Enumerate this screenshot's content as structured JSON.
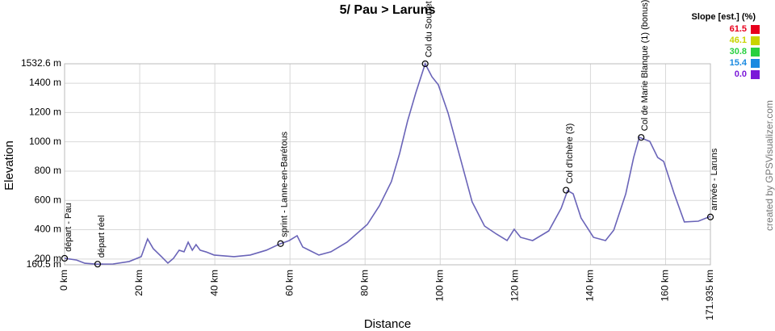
{
  "chart_data": {
    "type": "line",
    "title": "5/ Pau > Laruns",
    "x_label": "Distance",
    "y_label": "Elevation",
    "credit": "created by GPSVisualizer.com",
    "xlim": [
      0,
      171.935
    ],
    "ylim": [
      160.5,
      1532.6
    ],
    "xticks": [
      {
        "value": 0,
        "label": "0 km"
      },
      {
        "value": 20,
        "label": "20 km"
      },
      {
        "value": 40,
        "label": "40 km"
      },
      {
        "value": 60,
        "label": "60 km"
      },
      {
        "value": 80,
        "label": "80 km"
      },
      {
        "value": 100,
        "label": "100 km"
      },
      {
        "value": 120,
        "label": "120 km"
      },
      {
        "value": 140,
        "label": "140 km"
      },
      {
        "value": 160,
        "label": "160 km"
      },
      {
        "value": 171.935,
        "label": "171.935 km"
      }
    ],
    "yticks": [
      {
        "value": 160.5,
        "label": "160.5 m"
      },
      {
        "value": 200,
        "label": "200 m"
      },
      {
        "value": 400,
        "label": "400 m"
      },
      {
        "value": 600,
        "label": "600 m"
      },
      {
        "value": 800,
        "label": "800 m"
      },
      {
        "value": 1000,
        "label": "1000 m"
      },
      {
        "value": 1200,
        "label": "1200 m"
      },
      {
        "value": 1400,
        "label": "1400 m"
      },
      {
        "value": 1532.6,
        "label": "1532.6 m"
      }
    ],
    "grid": true,
    "series": [
      {
        "name": "Elevation",
        "color": "#6a64b8",
        "x": [
          0,
          3.2,
          5.4,
          8.6,
          12.9,
          17.2,
          20.4,
          22.1,
          23.6,
          25.8,
          27.5,
          29.0,
          30.5,
          31.8,
          32.9,
          34.0,
          35.0,
          36.1,
          37.6,
          39.8,
          45.1,
          49.4,
          53.7,
          57.4,
          59.8,
          61.9,
          63.4,
          67.7,
          70.9,
          75.2,
          80.6,
          83.8,
          87.0,
          89.2,
          91.3,
          93.5,
          96.0,
          97.8,
          99.5,
          102.1,
          105.3,
          108.5,
          111.8,
          115.0,
          117.8,
          119.7,
          121.4,
          124.6,
          128.9,
          132.2,
          133.9,
          135.4,
          137.5,
          140.8,
          144.0,
          146.2,
          149.4,
          151.5,
          153.0,
          155.8,
          157.9,
          159.5,
          162.3,
          165.0,
          168.7,
          171.935
        ],
        "values": [
          205,
          193,
          171,
          165,
          166,
          183,
          216,
          337,
          271,
          216,
          172,
          205,
          260,
          249,
          315,
          260,
          298,
          260,
          249,
          227,
          216,
          227,
          260,
          304,
          326,
          359,
          282,
          227,
          249,
          315,
          436,
          563,
          728,
          921,
          1141,
          1334,
          1532.6,
          1444,
          1389,
          1196,
          893,
          590,
          425,
          370,
          326,
          403,
          348,
          326,
          392,
          546,
          667,
          645,
          480,
          348,
          326,
          397,
          645,
          893,
          1031,
          1003,
          893,
          866,
          645,
          453,
          458,
          491
        ]
      }
    ],
    "waypoints": {
      "labels": [
        "départ - Pau",
        "départ réel",
        "sprint - Lanne-en-Barétous",
        "Col du Soudet",
        "Col d'Ichère (3)",
        "Col de Marie Blanque (1) (bonus)",
        "arrivée - Laruns"
      ],
      "x": [
        0,
        8.8,
        57.5,
        96.0,
        133.5,
        153.5,
        171.935
      ],
      "values": [
        205,
        165,
        305,
        1532.6,
        670,
        1030,
        487
      ]
    },
    "slope_legend": {
      "title": "Slope [est.] (%)",
      "values": [
        61.5,
        46.1,
        30.8,
        15.4,
        0
      ],
      "value_labels": [
        "61.5",
        "46.1",
        "30.8",
        "15.4",
        "0.0"
      ],
      "colors": [
        "#e8001c",
        "#c8d400",
        "#28d040",
        "#1a8ae0",
        "#7a18d8"
      ]
    }
  }
}
